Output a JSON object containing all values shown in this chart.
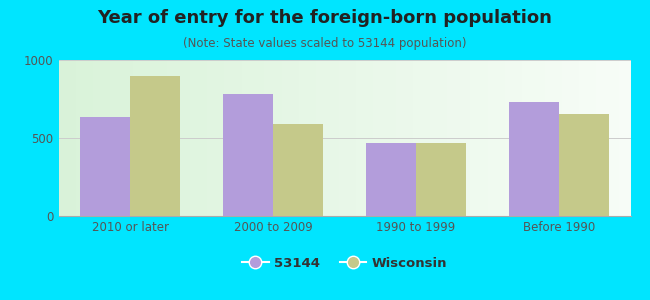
{
  "title": "Year of entry for the foreign-born population",
  "subtitle": "(Note: State values scaled to 53144 population)",
  "categories": [
    "2010 or later",
    "2000 to 2009",
    "1990 to 1999",
    "Before 1990"
  ],
  "values_53144": [
    635,
    785,
    470,
    730
  ],
  "values_wisconsin": [
    900,
    590,
    465,
    655
  ],
  "color_53144": "#b39ddb",
  "color_wisconsin": "#c5c98a",
  "background_outer": "#00e5ff",
  "ylim": [
    0,
    1000
  ],
  "yticks": [
    0,
    500,
    1000
  ],
  "bar_width": 0.35,
  "legend_label_53144": "53144",
  "legend_label_wisconsin": "Wisconsin",
  "title_fontsize": 13,
  "subtitle_fontsize": 8.5,
  "tick_fontsize": 8.5,
  "legend_fontsize": 9.5
}
